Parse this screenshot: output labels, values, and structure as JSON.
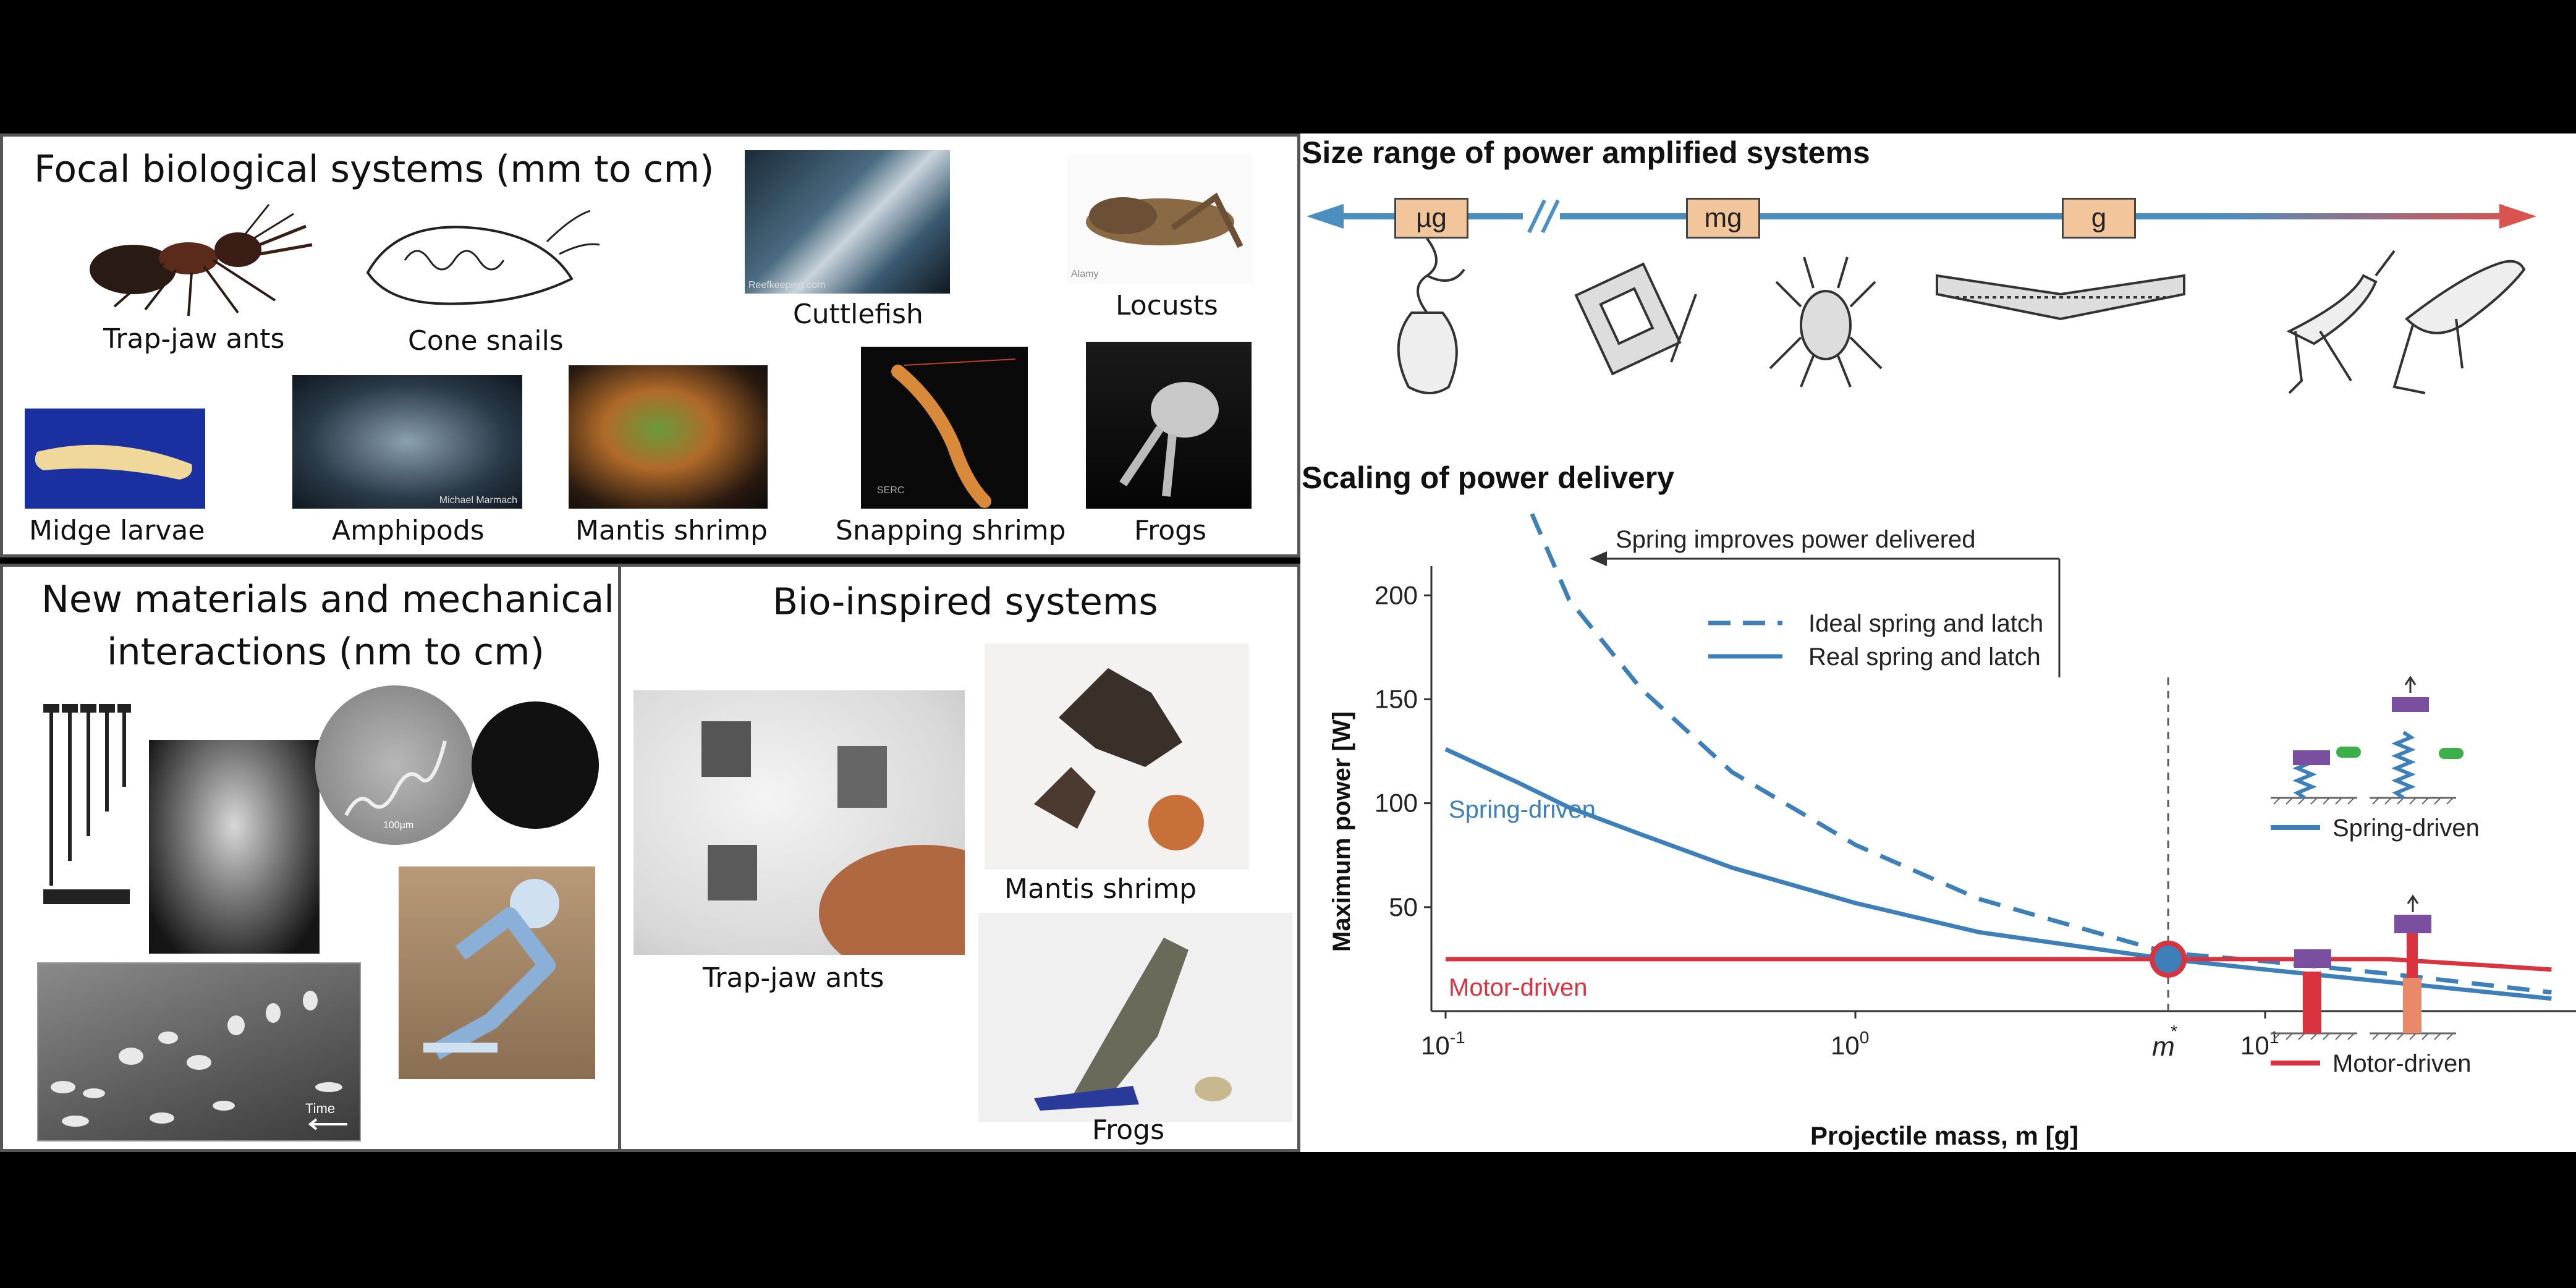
{
  "panels": {
    "focal": {
      "title": "Focal biological systems (mm to cm)",
      "items": [
        {
          "label": "Trap-jaw ants"
        },
        {
          "label": "Cone snails"
        },
        {
          "label": "Cuttlefish",
          "watermark": "Reefkeeping.com"
        },
        {
          "label": "Locusts",
          "watermark": "Alamy"
        },
        {
          "label": "Midge larvae"
        },
        {
          "label": "Amphipods",
          "watermark": "Michael Marmach"
        },
        {
          "label": "Mantis shrimp"
        },
        {
          "label": "Snapping shrimp",
          "watermark": "SERC"
        },
        {
          "label": "Frogs"
        }
      ]
    },
    "materials": {
      "title_line1": "New materials and mechanical",
      "title_line2": "interactions (nm to cm)",
      "scale_bar": "100µm",
      "time_label": "Time"
    },
    "bio": {
      "title": "Bio-inspired systems",
      "items": [
        {
          "label": "Trap-jaw ants"
        },
        {
          "label": "Mantis shrimp"
        },
        {
          "label": "Frogs"
        }
      ]
    }
  },
  "size_range": {
    "title": "Size range of power amplified systems",
    "markers": [
      "µg",
      "mg",
      "g"
    ],
    "colors": {
      "axis": "#4a8fc0",
      "arrow_end": "#d9534f",
      "marker_fill": "#f2c59a"
    }
  },
  "scaling": {
    "title": "Scaling of power delivery",
    "annotation": "Spring improves power delivered",
    "legend": [
      "Ideal spring and latch",
      "Real spring and latch"
    ],
    "spring_label": "Spring-driven",
    "motor_label": "Motor-driven",
    "crossover_label": "m",
    "crossover_sup": "*",
    "legend_right_spring": "Spring-driven",
    "legend_right_motor": "Motor-driven",
    "colors": {
      "spring": "#3d7fb8",
      "motor": "#d9333f",
      "purple": "#7b4fa0",
      "green": "#3cae4a"
    }
  },
  "chart_data": {
    "type": "line",
    "title": "Scaling of power delivery",
    "xlabel": "Projectile mass, m [g]",
    "ylabel": "Maximum power  [W]",
    "x_scale": "log",
    "xticks": [
      {
        "base": "10",
        "exp": "-1",
        "value": 0.1
      },
      {
        "base": "10",
        "exp": "0",
        "value": 1
      },
      {
        "base": "10",
        "exp": "1",
        "value": 10
      }
    ],
    "yticks": [
      50,
      100,
      150,
      200
    ],
    "xlim": [
      0.1,
      50
    ],
    "ylim": [
      0,
      220
    ],
    "m_star": 5.8,
    "series": [
      {
        "name": "Ideal spring and latch",
        "style": "dashed",
        "x": [
          0.15,
          0.2,
          0.3,
          0.5,
          1,
          2,
          3,
          5.8,
          10,
          20,
          50
        ],
        "y": [
          255,
          198,
          155,
          115,
          80,
          54,
          44,
          28,
          24,
          18,
          9
        ]
      },
      {
        "name": "Real spring and latch",
        "style": "solid",
        "x": [
          0.1,
          0.15,
          0.2,
          0.3,
          0.5,
          1,
          2,
          5.8,
          10,
          20,
          50
        ],
        "y": [
          126,
          110,
          98,
          85,
          69,
          52,
          38,
          25,
          20,
          14,
          6
        ]
      },
      {
        "name": "Motor-driven",
        "style": "solid",
        "x": [
          0.1,
          1,
          5.8,
          10,
          20,
          50
        ],
        "y": [
          25,
          25,
          25,
          25,
          25,
          20
        ]
      }
    ]
  }
}
